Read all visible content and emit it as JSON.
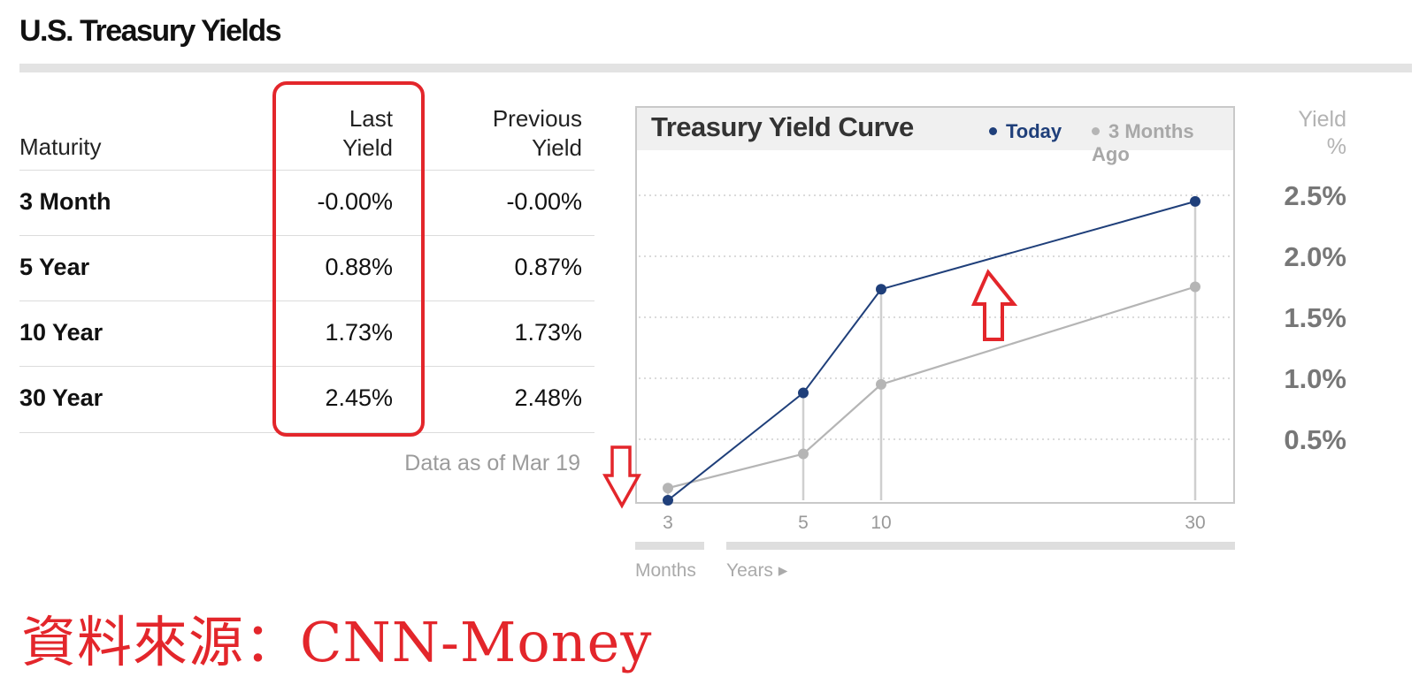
{
  "page": {
    "title": "U.S. Treasury Yields",
    "source_note": "資料來源：CNN-Money"
  },
  "table": {
    "headers": {
      "maturity": "Maturity",
      "last_line1": "Last",
      "last_line2": "Yield",
      "prev_line1": "Previous",
      "prev_line2": "Yield"
    },
    "rows": [
      {
        "maturity": "3 Month",
        "last": "-0.00%",
        "previous": "-0.00%"
      },
      {
        "maturity": "5 Year",
        "last": "0.88%",
        "previous": "0.87%"
      },
      {
        "maturity": "10 Year",
        "last": "1.73%",
        "previous": "1.73%"
      },
      {
        "maturity": "30 Year",
        "last": "2.45%",
        "previous": "2.48%"
      }
    ],
    "as_of": "Data as of Mar 19"
  },
  "colors": {
    "today": "#1f3f7a",
    "three_months_ago": "#b5b5b5",
    "annotation_red": "#e3262b"
  },
  "chart_data": {
    "type": "line",
    "title": "Treasury Yield Curve",
    "ylabel_line1": "Yield",
    "ylabel_line2": "%",
    "categories": [
      "3",
      "5",
      "10",
      "30"
    ],
    "x_group_labels": [
      "Months",
      "Years ▸"
    ],
    "yticks": [
      "2.5%",
      "2.0%",
      "1.5%",
      "1.0%",
      "0.5%"
    ],
    "ylim": [
      0,
      2.7
    ],
    "grid": true,
    "legend_position": "top",
    "series": [
      {
        "name": "Today",
        "values": [
          0.0,
          0.88,
          1.73,
          2.45
        ]
      },
      {
        "name": "3 Months Ago",
        "values": [
          0.1,
          0.38,
          0.95,
          1.75
        ]
      }
    ]
  }
}
